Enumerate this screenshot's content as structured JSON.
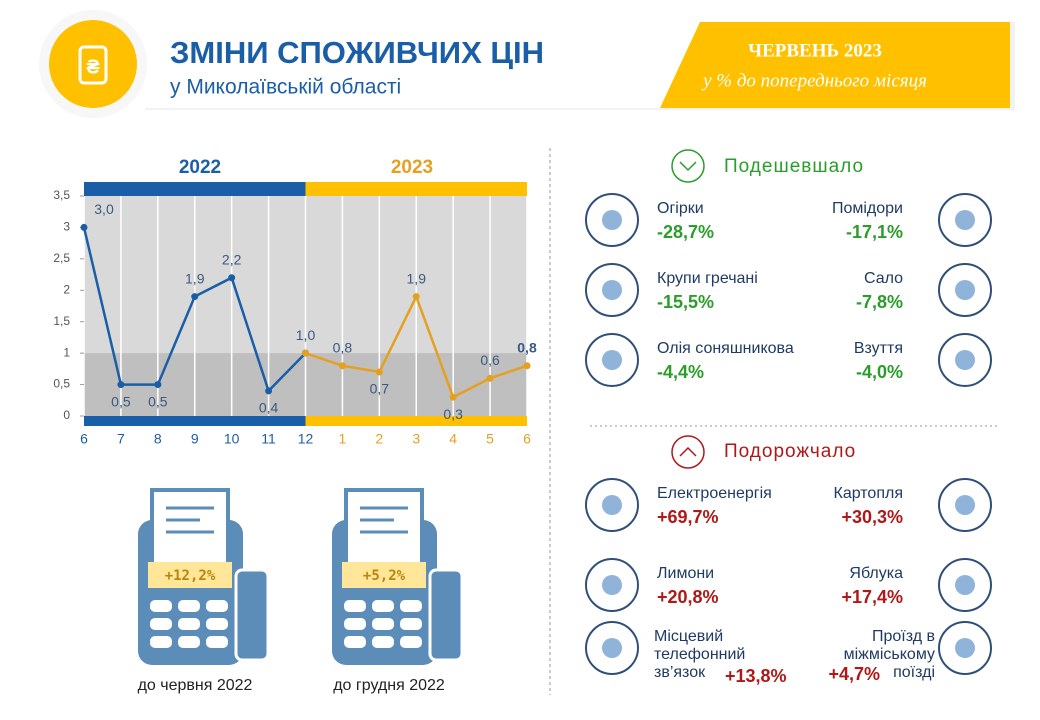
{
  "header": {
    "title": "ЗМІНИ СПОЖИВЧИХ ЦІН",
    "subtitle": "у Миколаївській області",
    "period": "ЧЕРВЕНЬ 2023",
    "note": "у % до попереднього місяця"
  },
  "chart_data": {
    "type": "line",
    "categories": [
      "6",
      "7",
      "8",
      "9",
      "10",
      "11",
      "12",
      "1",
      "2",
      "3",
      "4",
      "5",
      "6"
    ],
    "series": [
      {
        "name": "2022",
        "color": "#1b5ea8",
        "values": [
          3.0,
          0.5,
          0.5,
          1.9,
          2.2,
          0.4,
          1.0,
          null,
          null,
          null,
          null,
          null,
          null
        ],
        "value_labels": [
          "3,0",
          "0,5",
          "0,5",
          "1,9",
          "2,2",
          "0,4",
          "1,0",
          null,
          null,
          null,
          null,
          null,
          null
        ]
      },
      {
        "name": "2023",
        "color": "#e6a020",
        "values": [
          null,
          null,
          null,
          null,
          null,
          null,
          1.0,
          0.8,
          0.7,
          1.9,
          0.3,
          0.6,
          0.8
        ],
        "value_labels": [
          null,
          null,
          null,
          null,
          null,
          null,
          null,
          "0,8",
          "0,7",
          "1,9",
          "0,3",
          "0,6",
          "0,8"
        ]
      }
    ],
    "ylim": [
      0,
      3.5
    ],
    "yticks": [
      0,
      {
        "value": 0.5,
        "label": "0,5"
      },
      1,
      {
        "value": 1.5,
        "label": "1,5"
      },
      2,
      {
        "value": 2.5,
        "label": "2,5"
      },
      3,
      {
        "value": 3.5,
        "label": "3,5"
      }
    ]
  },
  "receipts": [
    {
      "value": "+12,2%",
      "label": "до червня 2022"
    },
    {
      "value": "+5,2%",
      "label": "до грудня 2022"
    }
  ],
  "cheaper": {
    "title": "Подешевшало",
    "items": [
      {
        "name": "Огірки",
        "change": "-28,7%"
      },
      {
        "name": "Помідори",
        "change": "-17,1%"
      },
      {
        "name": "Крупи гречані",
        "change": "-15,5%"
      },
      {
        "name": "Сало",
        "change": "-7,8%"
      },
      {
        "name": "Олія соняшникова",
        "change": "-4,4%"
      },
      {
        "name": "Взуття",
        "change": "-4,0%"
      }
    ]
  },
  "pricier": {
    "title": "Подорожчало",
    "items": [
      {
        "name": "Електроенергія",
        "change": "+69,7%"
      },
      {
        "name": "Картопля",
        "change": "+30,3%"
      },
      {
        "name": "Лимони",
        "change": "+20,8%"
      },
      {
        "name": "Яблука",
        "change": "+17,4%"
      },
      {
        "name": "Місцевий телефонний зв’язок",
        "change": "+13,8%"
      },
      {
        "name": "Проїзд в міжміському поїзді",
        "change": "+4,7%"
      }
    ]
  }
}
